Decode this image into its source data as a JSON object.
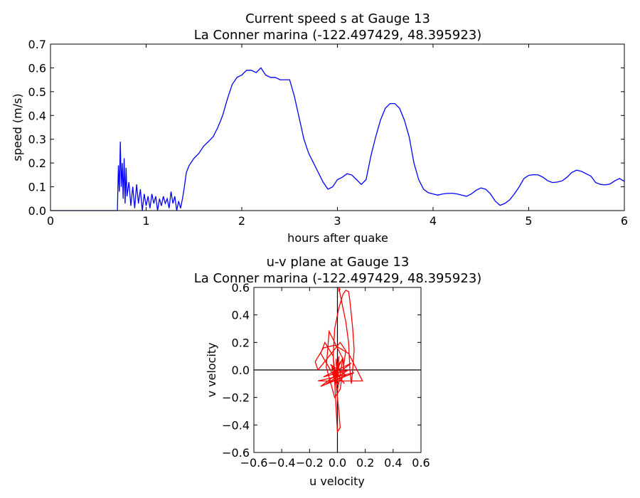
{
  "chart_data": [
    {
      "type": "line",
      "title": "Current speed s at Gauge 13",
      "subtitle": "La Conner marina  (-122.497429, 48.395923)",
      "xlabel": "hours after quake",
      "ylabel": "speed (m/s)",
      "xlim": [
        0,
        6
      ],
      "ylim": [
        0,
        0.7
      ],
      "xticks": [
        "0",
        "1",
        "2",
        "3",
        "4",
        "5",
        "6"
      ],
      "yticks": [
        "0.0",
        "0.1",
        "0.2",
        "0.3",
        "0.4",
        "0.5",
        "0.6",
        "0.7"
      ],
      "grid": false,
      "color": "#0000ff",
      "x": [
        0,
        0.7,
        0.71,
        0.72,
        0.73,
        0.74,
        0.75,
        0.76,
        0.77,
        0.78,
        0.79,
        0.8,
        0.82,
        0.84,
        0.86,
        0.88,
        0.9,
        0.92,
        0.94,
        0.96,
        0.98,
        1.0,
        1.02,
        1.04,
        1.06,
        1.08,
        1.1,
        1.12,
        1.14,
        1.16,
        1.18,
        1.2,
        1.22,
        1.24,
        1.26,
        1.28,
        1.3,
        1.32,
        1.34,
        1.36,
        1.38,
        1.4,
        1.42,
        1.45,
        1.5,
        1.55,
        1.6,
        1.65,
        1.7,
        1.75,
        1.8,
        1.85,
        1.9,
        1.95,
        2.0,
        2.05,
        2.1,
        2.15,
        2.2,
        2.25,
        2.3,
        2.35,
        2.4,
        2.45,
        2.5,
        2.55,
        2.6,
        2.65,
        2.7,
        2.75,
        2.8,
        2.85,
        2.9,
        2.95,
        3.0,
        3.05,
        3.1,
        3.15,
        3.2,
        3.25,
        3.3,
        3.35,
        3.4,
        3.45,
        3.5,
        3.55,
        3.6,
        3.65,
        3.7,
        3.75,
        3.8,
        3.85,
        3.9,
        3.95,
        4.0,
        4.05,
        4.1,
        4.15,
        4.2,
        4.25,
        4.3,
        4.35,
        4.4,
        4.45,
        4.5,
        4.55,
        4.6,
        4.65,
        4.7,
        4.75,
        4.8,
        4.85,
        4.9,
        4.95,
        5.0,
        5.05,
        5.1,
        5.15,
        5.2,
        5.25,
        5.3,
        5.35,
        5.4,
        5.45,
        5.5,
        5.55,
        5.6,
        5.65,
        5.7,
        5.75,
        5.8,
        5.85,
        5.9,
        5.95,
        6.0
      ],
      "y": [
        0,
        0,
        0.19,
        0.08,
        0.29,
        0.1,
        0.2,
        0.05,
        0.22,
        0.03,
        0.18,
        0.06,
        0.12,
        0.02,
        0.1,
        0.01,
        0.11,
        0.03,
        0.09,
        0.0,
        0.07,
        0.02,
        0.06,
        0.01,
        0.07,
        0.03,
        0.06,
        0.0,
        0.05,
        0.02,
        0.06,
        0.03,
        0.05,
        0.01,
        0.08,
        0.03,
        0.06,
        0.0,
        0.04,
        0.01,
        0.05,
        0.1,
        0.16,
        0.19,
        0.22,
        0.24,
        0.27,
        0.29,
        0.31,
        0.35,
        0.4,
        0.47,
        0.53,
        0.56,
        0.57,
        0.59,
        0.59,
        0.58,
        0.6,
        0.57,
        0.56,
        0.56,
        0.55,
        0.55,
        0.55,
        0.48,
        0.39,
        0.3,
        0.24,
        0.2,
        0.16,
        0.12,
        0.09,
        0.1,
        0.13,
        0.14,
        0.155,
        0.15,
        0.13,
        0.11,
        0.13,
        0.23,
        0.31,
        0.38,
        0.43,
        0.45,
        0.45,
        0.43,
        0.38,
        0.31,
        0.2,
        0.13,
        0.09,
        0.075,
        0.07,
        0.065,
        0.07,
        0.072,
        0.073,
        0.07,
        0.065,
        0.06,
        0.07,
        0.085,
        0.095,
        0.09,
        0.07,
        0.04,
        0.022,
        0.03,
        0.045,
        0.07,
        0.1,
        0.135,
        0.148,
        0.151,
        0.15,
        0.14,
        0.125,
        0.118,
        0.12,
        0.125,
        0.14,
        0.16,
        0.17,
        0.165,
        0.155,
        0.145,
        0.118,
        0.11,
        0.108,
        0.112,
        0.125,
        0.135,
        0.123
      ]
    },
    {
      "type": "line",
      "title": "u-v plane at Gauge 13",
      "subtitle": "La Conner marina  (-122.497429, 48.395923)",
      "xlabel": "u velocity",
      "ylabel": "v velocity",
      "xlim": [
        -0.6,
        0.6
      ],
      "ylim": [
        -0.6,
        0.6
      ],
      "xticks": [
        "−0.6",
        "−0.4",
        "−0.2",
        "0.0",
        "0.2",
        "0.4",
        "0.6"
      ],
      "yticks": [
        "−0.6",
        "−0.4",
        "−0.2",
        "0.0",
        "0.2",
        "0.4",
        "0.6"
      ],
      "grid": false,
      "color": "#ff0000",
      "x": [
        0.0,
        -0.01,
        0.01,
        -0.01,
        0.0,
        0.01,
        -0.02,
        0.02,
        -0.03,
        0.04,
        0.0,
        -0.04,
        0.05,
        -0.05,
        0.06,
        -0.08,
        0.08,
        -0.1,
        0.1,
        -0.12,
        0.12,
        -0.14,
        0.18,
        0.08,
        -0.02,
        -0.1,
        -0.16,
        -0.14,
        -0.06,
        0.02,
        0.06,
        0.02,
        -0.02,
        -0.08,
        -0.06,
        0.04,
        0.05,
        0.0,
        -0.05,
        -0.12,
        -0.09,
        -0.03,
        0.01,
        0.02,
        0.0,
        -0.03,
        -0.02,
        0.01,
        0.04,
        0.06,
        0.08,
        0.09,
        0.1,
        0.11,
        0.12,
        0.11,
        0.1,
        0.09,
        0.08,
        0.06,
        0.04,
        0.02,
        0.01,
        0.01,
        0.02
      ],
      "y": [
        0.0,
        0.05,
        -0.05,
        0.08,
        -0.08,
        0.1,
        -0.1,
        0.06,
        -0.06,
        0.09,
        -0.15,
        0.02,
        -0.1,
        0.04,
        -0.04,
        -0.1,
        0.0,
        -0.05,
        0.05,
        -0.12,
        -0.02,
        -0.08,
        -0.08,
        0.12,
        0.18,
        0.16,
        0.06,
        0.0,
        0.1,
        0.2,
        0.14,
        -0.14,
        -0.2,
        0.02,
        0.28,
        0.08,
        -0.04,
        -0.1,
        0.0,
        0.12,
        0.2,
        0.1,
        -0.3,
        -0.42,
        -0.45,
        0.1,
        0.3,
        0.45,
        0.55,
        0.58,
        0.57,
        0.5,
        0.4,
        0.3,
        0.15,
        0.0,
        -0.1,
        0.0,
        0.2,
        0.35,
        0.45,
        0.55,
        0.6,
        0.57,
        0.59
      ]
    }
  ]
}
